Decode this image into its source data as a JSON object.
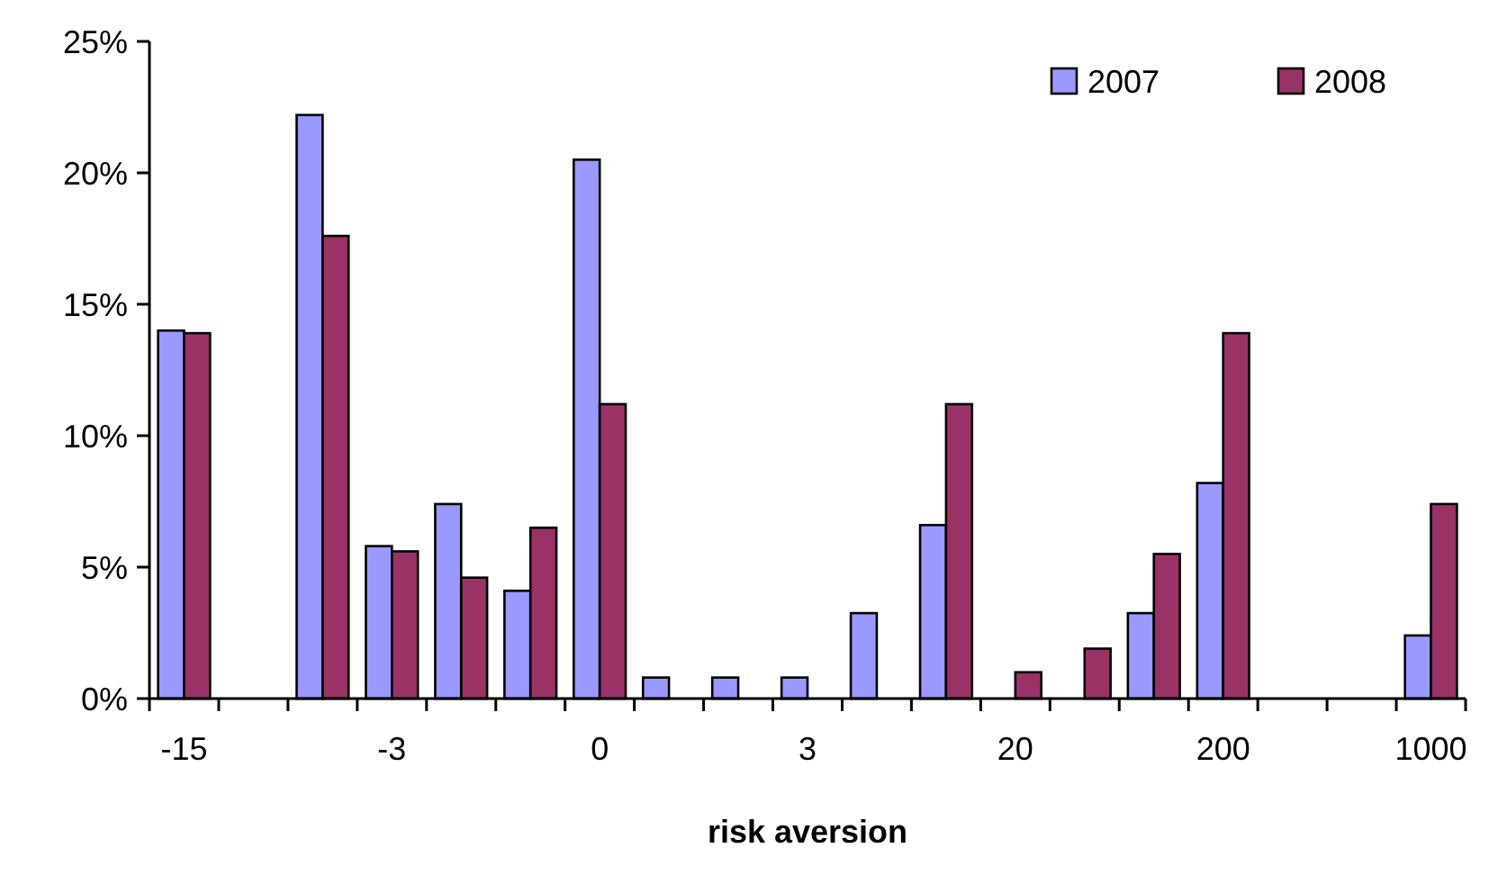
{
  "chart_data": {
    "type": "bar",
    "xlabel": "risk aversion",
    "categories": [
      "-15",
      null,
      null,
      "-3",
      null,
      null,
      "0",
      null,
      null,
      "3",
      null,
      null,
      "20",
      null,
      null,
      "200",
      null,
      null,
      "1000"
    ],
    "series": [
      {
        "name": "2007",
        "color": "#9999ff",
        "values": [
          14.0,
          null,
          22.2,
          5.8,
          7.4,
          4.1,
          20.5,
          0.8,
          0.8,
          0.8,
          3.25,
          6.6,
          null,
          null,
          3.25,
          8.2,
          null,
          null,
          2.4
        ]
      },
      {
        "name": "2008",
        "color": "#993366",
        "values": [
          13.9,
          null,
          17.6,
          5.6,
          4.6,
          6.5,
          11.2,
          null,
          null,
          null,
          null,
          11.2,
          1.0,
          1.9,
          5.5,
          13.9,
          null,
          null,
          7.4
        ]
      }
    ],
    "ylim": [
      0,
      25
    ],
    "yticks": [
      {
        "value": 0,
        "label": "0%"
      },
      {
        "value": 5,
        "label": "5%"
      },
      {
        "value": 10,
        "label": "10%"
      },
      {
        "value": 15,
        "label": "15%"
      },
      {
        "value": 20,
        "label": "20%"
      },
      {
        "value": 25,
        "label": "25%"
      }
    ],
    "legend": "top right"
  }
}
